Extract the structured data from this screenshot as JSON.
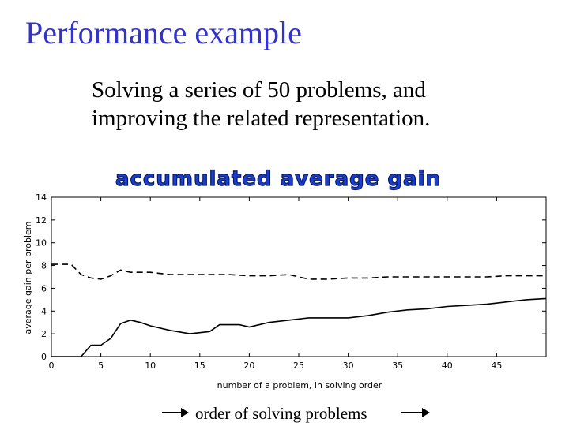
{
  "slide": {
    "title": "Performance example",
    "subtitle_line1": "Solving a series of 50 problems, and",
    "subtitle_line2": "improving the related representation.",
    "footer": "order of solving problems"
  },
  "chart_data": {
    "type": "line",
    "title": "accumulated average gain",
    "xlabel": "number of a problem, in solving order",
    "ylabel": "average gain per problem",
    "xlim": [
      0,
      50
    ],
    "ylim": [
      0,
      14
    ],
    "xticks": [
      0,
      5,
      10,
      15,
      20,
      25,
      30,
      35,
      40,
      45
    ],
    "yticks": [
      0,
      2,
      4,
      6,
      8,
      10,
      12,
      14
    ],
    "grid": false,
    "series": [
      {
        "style": "dashed",
        "x": [
          0,
          2,
          3,
          4,
          5,
          6,
          7,
          8,
          10,
          12,
          14,
          16,
          18,
          20,
          22,
          24,
          26,
          28,
          30,
          32,
          34,
          36,
          38,
          40,
          42,
          44,
          46,
          48,
          50
        ],
        "y": [
          8.1,
          8.1,
          7.2,
          6.9,
          6.8,
          7.1,
          7.6,
          7.4,
          7.4,
          7.2,
          7.2,
          7.2,
          7.2,
          7.1,
          7.1,
          7.2,
          6.8,
          6.8,
          6.9,
          6.9,
          7.0,
          7.0,
          7.0,
          7.0,
          7.0,
          7.0,
          7.1,
          7.1,
          7.1
        ]
      },
      {
        "style": "solid",
        "x": [
          0,
          3,
          4,
          5,
          6,
          7,
          8,
          9,
          10,
          12,
          14,
          15,
          16,
          17,
          19,
          20,
          22,
          24,
          26,
          28,
          30,
          32,
          34,
          36,
          38,
          40,
          42,
          44,
          46,
          48,
          50
        ],
        "y": [
          0.0,
          0.0,
          1.0,
          1.0,
          1.6,
          2.9,
          3.2,
          3.0,
          2.7,
          2.3,
          2.0,
          2.1,
          2.2,
          2.8,
          2.8,
          2.6,
          3.0,
          3.2,
          3.4,
          3.4,
          3.4,
          3.6,
          3.9,
          4.1,
          4.2,
          4.4,
          4.5,
          4.6,
          4.8,
          5.0,
          5.1
        ]
      }
    ]
  }
}
